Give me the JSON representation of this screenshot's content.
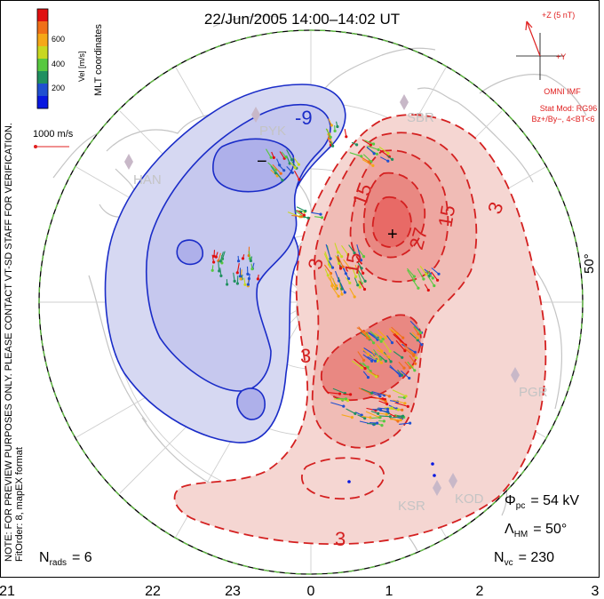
{
  "title": "22/Jun/2005 14:00–14:02 UT",
  "side_note": {
    "line1": "NOTE: FOR PREVIEW PURPOSES ONLY. PLEASE CONTACT VT-SD STAFF FOR VERIFICATION.",
    "line2": "FitOrder: 8, mapEX format"
  },
  "colorbar": {
    "coord_label": "MLT coordinates",
    "var_label": "Vel [m/s]",
    "ticks": [
      "600",
      "400",
      "200"
    ],
    "colors": [
      "#e01010",
      "#f07018",
      "#f5a818",
      "#c8d820",
      "#58c840",
      "#209060",
      "#2050d0",
      "#0818e0"
    ]
  },
  "velocity_scale": {
    "label": "1000 m/s",
    "color": "#e02020"
  },
  "imf": {
    "z_label": "+Z (5 nT)",
    "y_label": "+Y",
    "source": "OMNI IMF",
    "model": "Stat Mod: RG96",
    "conditions": "Bz+/By−, 4<BT<6",
    "color": "#e02020"
  },
  "stations": [
    "PYK",
    "SBR",
    "HAN",
    "PGR",
    "KSR",
    "KOD"
  ],
  "latitude_label": "50°",
  "contour_labels": {
    "negative": [
      "-9"
    ],
    "positive": [
      "15",
      "15",
      "27",
      "15",
      "3",
      "3",
      "3",
      "3"
    ]
  },
  "extrema": {
    "min": "−",
    "max": "+"
  },
  "stats": {
    "cpcp_symbol": "Φ",
    "cpcp_sub": "pc",
    "cpcp_value": "= 54 kV",
    "hm_symbol": "Λ",
    "hm_sub": "HM",
    "hm_value": "= 50°",
    "nvc_symbol": "N",
    "nvc_sub": "vc",
    "nvc_value": "= 230",
    "nrads_symbol": "N",
    "nrads_sub": "rads",
    "nrads_value": "= 6"
  },
  "mlt_axis": [
    "21",
    "22",
    "23",
    "0",
    "1",
    "2",
    "3"
  ],
  "colors": {
    "negative_fill": "#d6d8f2",
    "negative_core": "#aeb0ea",
    "negative_line": "#1a2cc8",
    "positive_fill": "#f5d6d2",
    "positive_mid": "#eea6a0",
    "positive_core": "#e86a66",
    "positive_line": "#d42020",
    "boundary": "#60c040",
    "coast": "#bcbcbc"
  }
}
